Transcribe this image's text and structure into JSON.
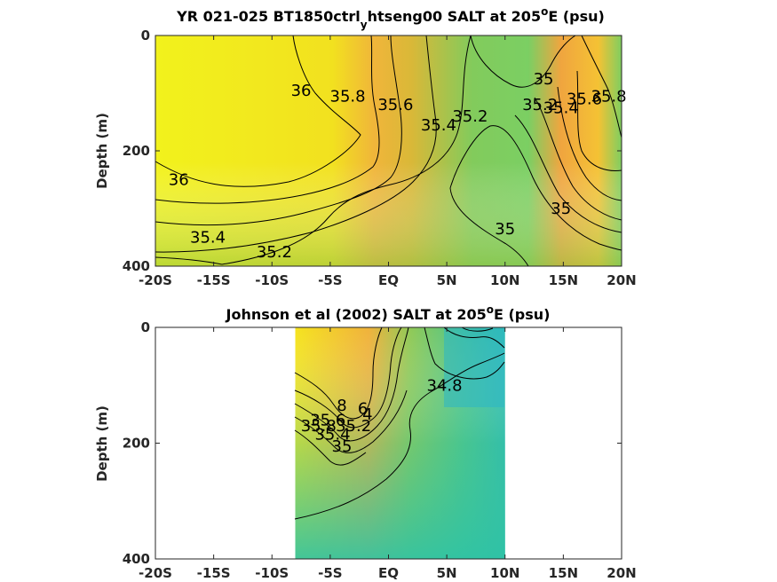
{
  "chart_data": [
    {
      "type": "heatmap",
      "title_main": "YR 021-025 BT1850ctrl",
      "title_sub": "y",
      "title_rest": "htseng00 SALT at 205",
      "title_sup": "o",
      "title_end": "E (psu)",
      "ylabel": "Depth (m)",
      "xlabel": "",
      "x_ticks": [
        "-20S",
        "-15S",
        "-10S",
        "-5S",
        "EQ",
        "5N",
        "10N",
        "15N",
        "20N"
      ],
      "x_tick_values": [
        -20,
        -15,
        -10,
        -5,
        0,
        5,
        10,
        15,
        20
      ],
      "y_ticks": [
        "0",
        "200",
        "400"
      ],
      "y_tick_values": [
        0,
        200,
        400
      ],
      "xlim": [
        -20,
        20
      ],
      "ylim": [
        0,
        400
      ],
      "y_reversed": true,
      "data_extent": [
        -20,
        20
      ],
      "contour_labels": [
        {
          "text": "36",
          "x": -7.5,
          "depth": 95
        },
        {
          "text": "35.8",
          "x": -3.5,
          "depth": 105
        },
        {
          "text": "35.6",
          "x": 0.6,
          "depth": 120
        },
        {
          "text": "35.4",
          "x": 4.3,
          "depth": 155
        },
        {
          "text": "35.2",
          "x": 7.0,
          "depth": 140
        },
        {
          "text": "36",
          "x": -18.0,
          "depth": 250
        },
        {
          "text": "35.4",
          "x": -15.5,
          "depth": 350
        },
        {
          "text": "35.2",
          "x": -9.8,
          "depth": 375
        },
        {
          "text": "35",
          "x": 13.3,
          "depth": 75
        },
        {
          "text": "35.2",
          "x": 13.0,
          "depth": 120
        },
        {
          "text": "35.4",
          "x": 14.8,
          "depth": 125
        },
        {
          "text": "35.6",
          "x": 16.8,
          "depth": 110
        },
        {
          "text": "35.8",
          "x": 18.9,
          "depth": 105
        },
        {
          "text": "35",
          "x": 14.8,
          "depth": 300
        },
        {
          "text": "35",
          "x": 10.0,
          "depth": 335
        }
      ]
    },
    {
      "type": "heatmap",
      "title_main": "Johnson et al (2002) SALT at 205",
      "title_sup": "o",
      "title_end": "E (psu)",
      "ylabel": "Depth (m)",
      "xlabel": "",
      "x_ticks": [
        "-20S",
        "-15S",
        "-10S",
        "-5S",
        "EQ",
        "5N",
        "10N",
        "15N",
        "20N"
      ],
      "x_tick_values": [
        -20,
        -15,
        -10,
        -5,
        0,
        5,
        10,
        15,
        20
      ],
      "y_ticks": [
        "0",
        "200",
        "400"
      ],
      "y_tick_values": [
        0,
        200,
        400
      ],
      "xlim": [
        -20,
        20
      ],
      "ylim": [
        0,
        400
      ],
      "y_reversed": true,
      "data_extent": [
        -8,
        10
      ],
      "contour_labels": [
        {
          "text": "34.8",
          "x": 4.8,
          "depth": 100
        },
        {
          "text": "8",
          "x": -4.0,
          "depth": 135
        },
        {
          "text": "6",
          "x": -2.2,
          "depth": 140
        },
        {
          "text": "4",
          "x": -1.8,
          "depth": 150
        },
        {
          "text": "35.2",
          "x": -3.0,
          "depth": 170
        },
        {
          "text": "35.6",
          "x": -5.2,
          "depth": 160
        },
        {
          "text": "35",
          "x": -4.0,
          "depth": 205
        },
        {
          "text": "35.4",
          "x": -4.8,
          "depth": 185
        },
        {
          "text": "35.8",
          "x": -6.0,
          "depth": 170
        }
      ]
    }
  ]
}
